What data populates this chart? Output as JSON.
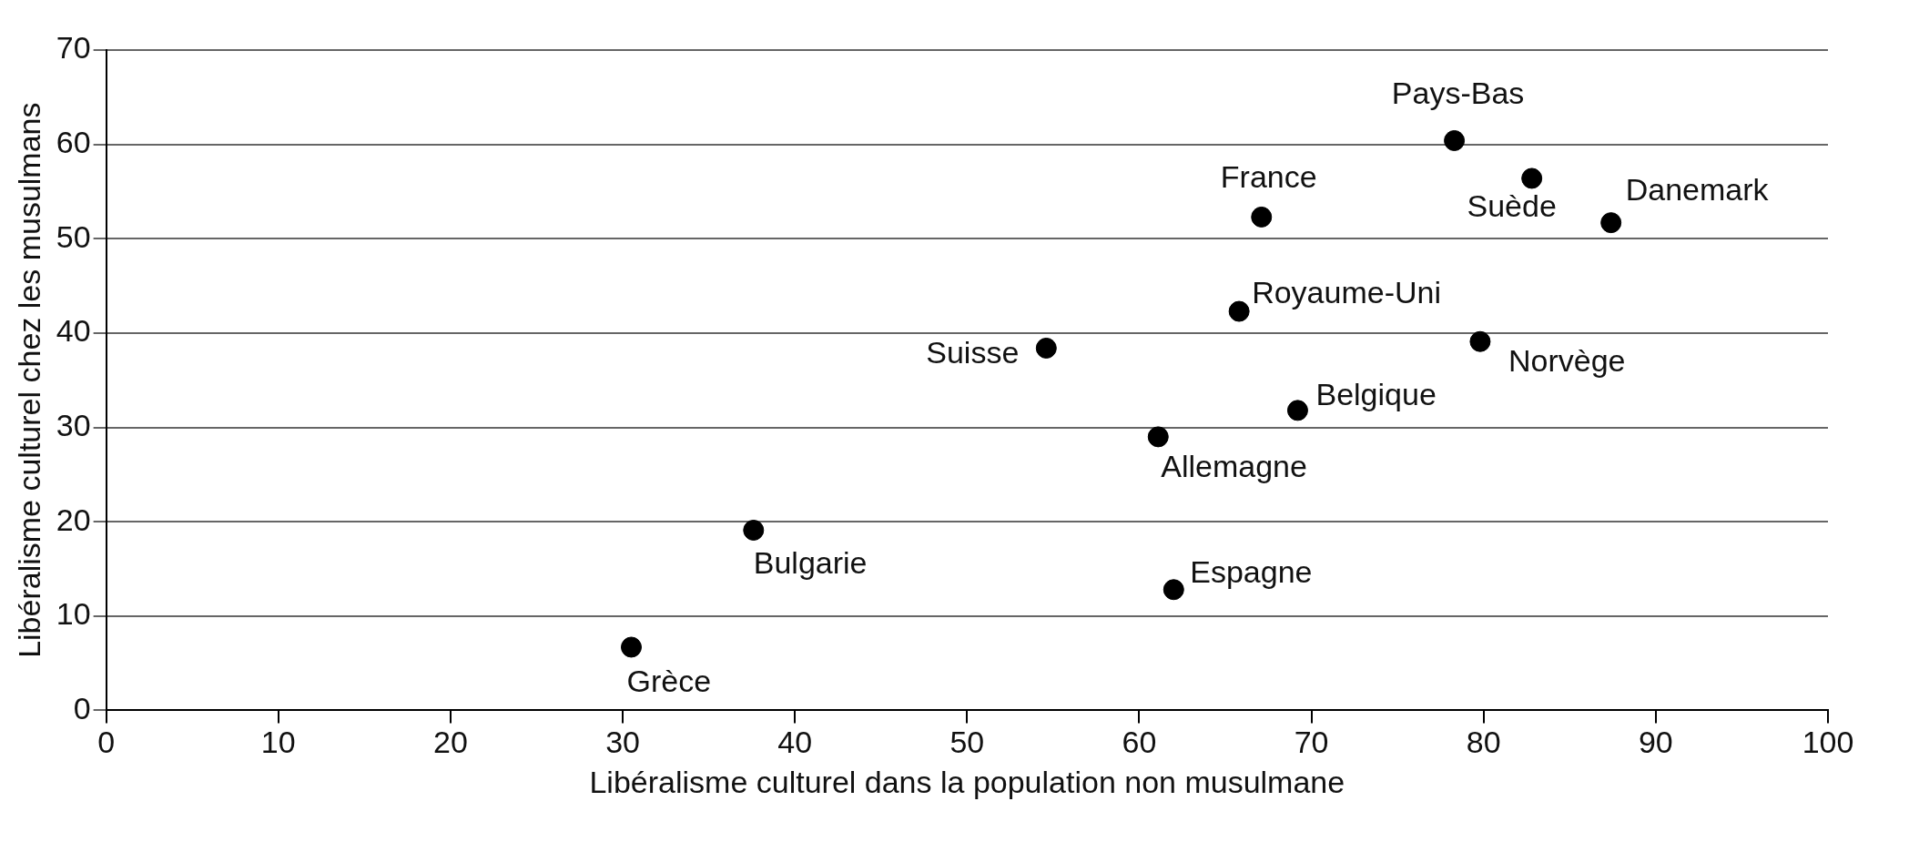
{
  "chart_data": {
    "type": "scatter",
    "xlabel": "Libéralisme culturel dans la population non musulmane",
    "ylabel": "Libéralisme culturel chez les musulmans",
    "series": [
      {
        "color": "#000000",
        "x": [
          30.5,
          37.6,
          62.0,
          61.1,
          69.2,
          54.6,
          65.8,
          67.1,
          78.3,
          82.8,
          87.4,
          79.8
        ],
        "values": [
          6.7,
          19.1,
          12.8,
          29.0,
          31.8,
          38.4,
          42.3,
          52.3,
          60.4,
          56.4,
          51.7,
          39.1
        ]
      }
    ],
    "annotations": [
      {
        "text": "Grèce",
        "x": 30.5,
        "y": 6.7
      },
      {
        "text": "Bulgarie",
        "x": 37.6,
        "y": 19.1
      },
      {
        "text": "Espagne",
        "x": 62.0,
        "y": 12.8
      },
      {
        "text": "Allemagne",
        "x": 61.1,
        "y": 29.0
      },
      {
        "text": "Belgique",
        "x": 69.2,
        "y": 31.8
      },
      {
        "text": "Suisse",
        "x": 54.6,
        "y": 38.4
      },
      {
        "text": "Royaume-Uni",
        "x": 65.8,
        "y": 42.3
      },
      {
        "text": "France",
        "x": 67.1,
        "y": 52.3
      },
      {
        "text": "Pays-Bas",
        "x": 78.3,
        "y": 60.4
      },
      {
        "text": "Suède",
        "x": 82.8,
        "y": 56.4
      },
      {
        "text": "Danemark",
        "x": 87.4,
        "y": 51.7
      },
      {
        "text": "Norvège",
        "x": 79.8,
        "y": 39.1
      }
    ],
    "xlim": [
      0,
      100
    ],
    "xticks": [
      0,
      10,
      20,
      30,
      40,
      50,
      60,
      70,
      80,
      90,
      100
    ],
    "ylim": [
      0,
      70
    ],
    "yticks": [
      0,
      10,
      20,
      30,
      40,
      50,
      60,
      70
    ],
    "grid": "y",
    "legend": false,
    "marker": "circle"
  }
}
